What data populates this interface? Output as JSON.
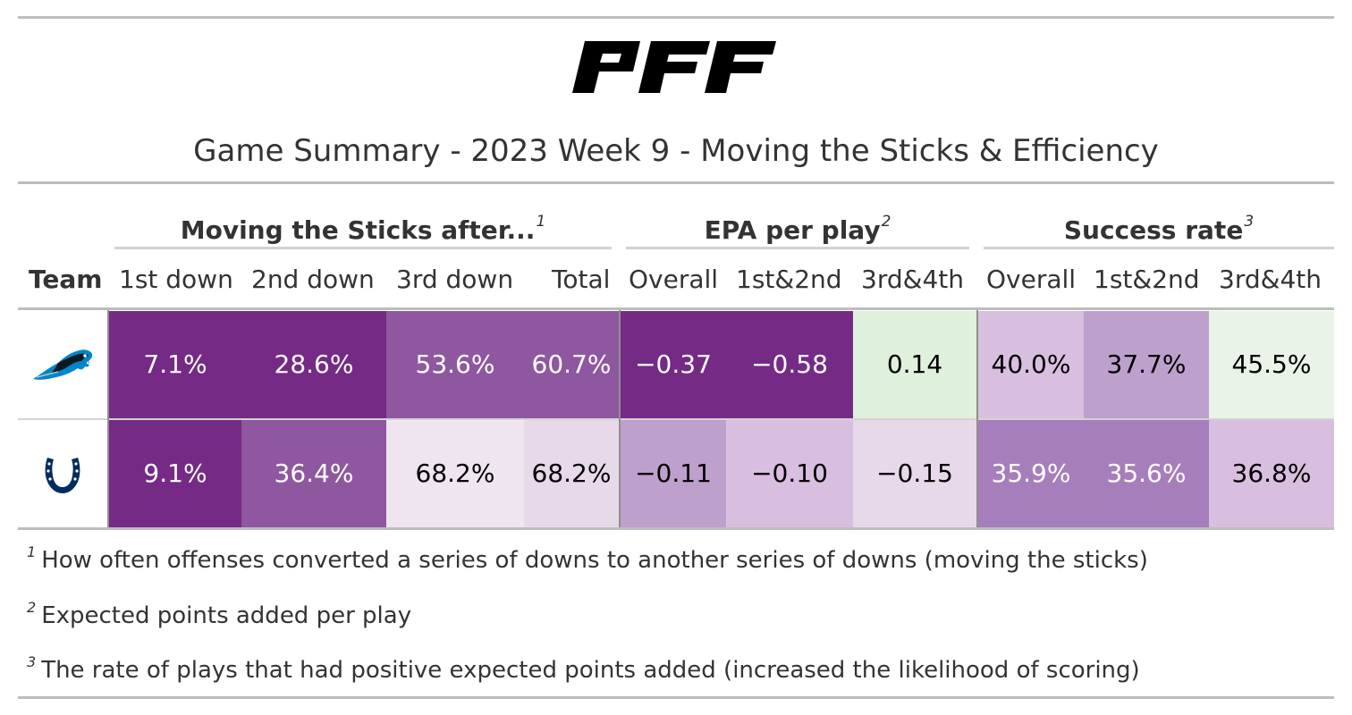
{
  "title": "Game Summary - 2023 Week 9 - Moving the Sticks & Efficiency",
  "logo": {
    "icon": "pff-logo",
    "text": "PFF"
  },
  "spanners": {
    "moving": {
      "label": "Moving the Sticks after...",
      "mark": "1"
    },
    "epa": {
      "label": "EPA per play",
      "mark": "2"
    },
    "success": {
      "label": "Success rate",
      "mark": "3"
    }
  },
  "columns": {
    "team": "Team",
    "first_down": "1st down",
    "second_down": "2nd down",
    "third_down": "3rd down",
    "total": "Total",
    "epa_overall": "Overall",
    "epa_12": "1st&2nd",
    "epa_34": "3rd&4th",
    "sr_overall": "Overall",
    "sr_12": "1st&2nd",
    "sr_34": "3rd&4th"
  },
  "rows": [
    {
      "team_icon": "panthers-logo-icon",
      "values": [
        "7.1%",
        "28.6%",
        "53.6%",
        "60.7%",
        "−0.37",
        "−0.58",
        "0.14",
        "40.0%",
        "37.7%",
        "45.5%"
      ],
      "colors": [
        "#752a85",
        "#752a85",
        "#8e57a0",
        "#8e57a0",
        "#752a85",
        "#752a85",
        "#dff0db",
        "#d9bfdf",
        "#bea0cd",
        "#eaf3e7"
      ],
      "text_colors": [
        "#ffffff",
        "#ffffff",
        "#ffffff",
        "#ffffff",
        "#ffffff",
        "#ffffff",
        "#000000",
        "#000000",
        "#000000",
        "#000000"
      ]
    },
    {
      "team_icon": "colts-horseshoe-icon",
      "values": [
        "9.1%",
        "36.4%",
        "68.2%",
        "68.2%",
        "−0.11",
        "−0.10",
        "−0.15",
        "35.9%",
        "35.6%",
        "36.8%"
      ],
      "colors": [
        "#752a85",
        "#8e57a0",
        "#eee5f0",
        "#e8d9ea",
        "#bea0cd",
        "#d9bfdf",
        "#e8d9ea",
        "#a67ebb",
        "#a67ebb",
        "#d9bfdf"
      ],
      "text_colors": [
        "#ffffff",
        "#ffffff",
        "#000000",
        "#000000",
        "#000000",
        "#000000",
        "#000000",
        "#ffffff",
        "#ffffff",
        "#000000"
      ]
    }
  ],
  "footnotes": [
    {
      "mark": "1",
      "text": "How often offenses converted a series of downs to another series of downs (moving the sticks)"
    },
    {
      "mark": "2",
      "text": "Expected points added per play"
    },
    {
      "mark": "3",
      "text": "The rate of plays that had positive expected points added (increased the likelihood of scoring)"
    }
  ]
}
